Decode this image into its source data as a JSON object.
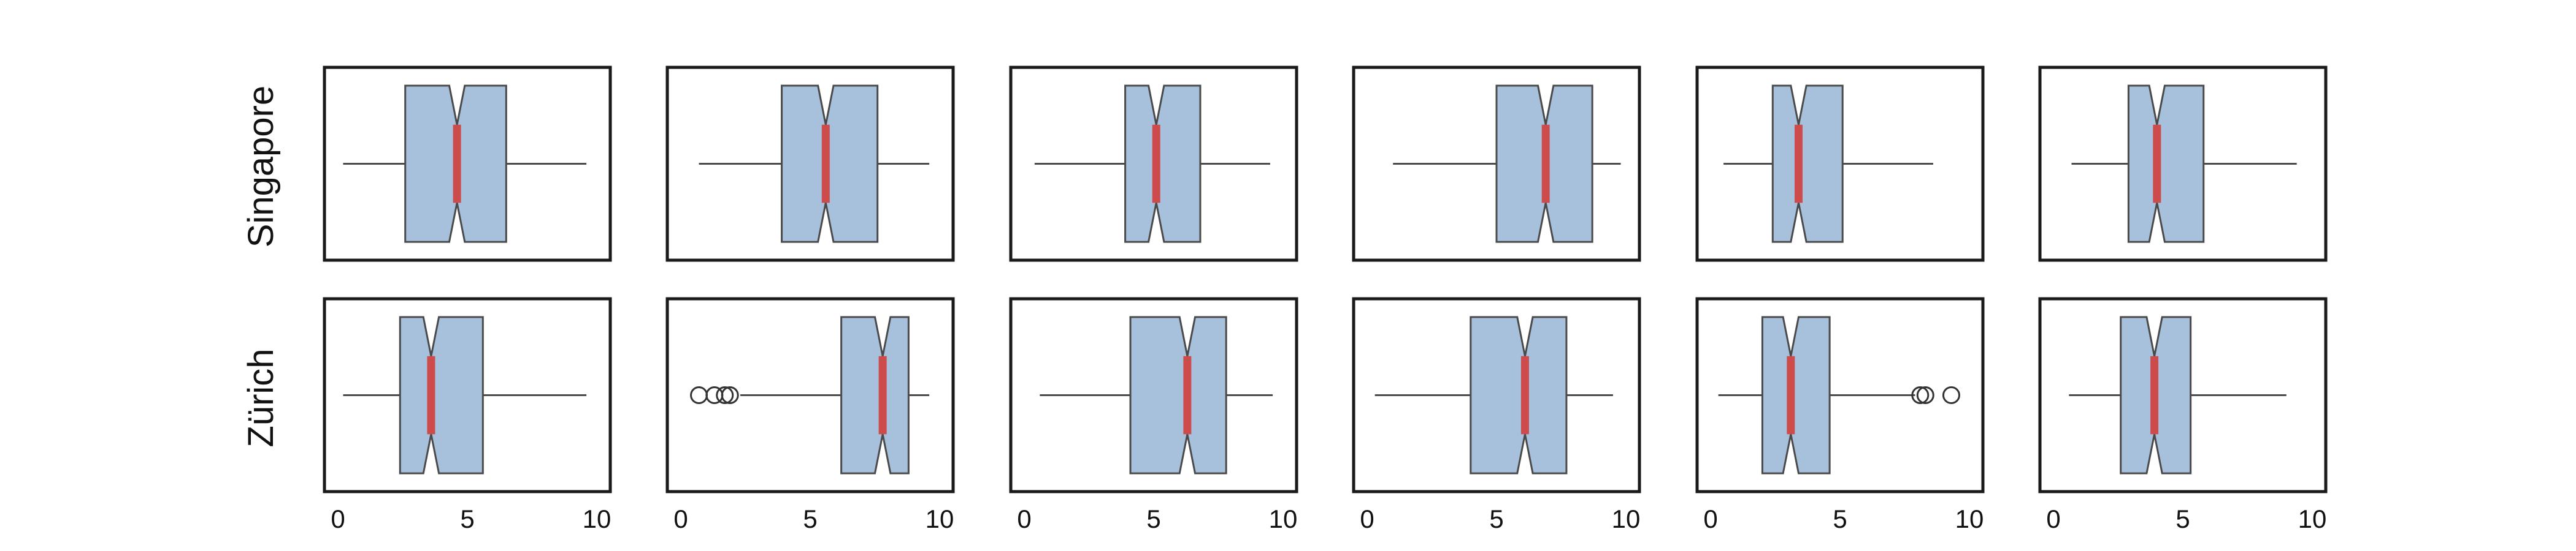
{
  "chart_data": {
    "type": "boxplot",
    "orientation": "horizontal",
    "notched": true,
    "rows": [
      "Singapore",
      "Zürich"
    ],
    "columns": 6,
    "xlim": [
      0,
      10
    ],
    "xticks": [
      0,
      5,
      10
    ],
    "tick_labels": [
      "0",
      "5",
      "10"
    ],
    "grid": false,
    "colors": {
      "box_fill": "#a7c0dc",
      "box_edge": "#4a4a4a",
      "median": "#cd4b4b",
      "frame": "#1a1a1a"
    },
    "panels": [
      [
        {
          "whislo": 0.2,
          "q1": 2.6,
          "notch_lo": 4.3,
          "med": 4.6,
          "notch_hi": 4.9,
          "q3": 6.5,
          "whishi": 9.6,
          "fliers": []
        },
        {
          "whislo": 0.7,
          "q1": 3.9,
          "notch_lo": 5.3,
          "med": 5.6,
          "notch_hi": 5.9,
          "q3": 7.6,
          "whishi": 9.6,
          "fliers": []
        },
        {
          "whislo": 0.4,
          "q1": 3.9,
          "notch_lo": 4.8,
          "med": 5.1,
          "notch_hi": 5.4,
          "q3": 6.8,
          "whishi": 9.5,
          "fliers": []
        },
        {
          "whislo": 1.0,
          "q1": 5.0,
          "notch_lo": 6.6,
          "med": 6.9,
          "notch_hi": 7.2,
          "q3": 8.7,
          "whishi": 9.8,
          "fliers": []
        },
        {
          "whislo": 0.5,
          "q1": 2.4,
          "notch_lo": 3.1,
          "med": 3.4,
          "notch_hi": 3.7,
          "q3": 5.1,
          "whishi": 8.6,
          "fliers": []
        },
        {
          "whislo": 0.7,
          "q1": 2.9,
          "notch_lo": 3.7,
          "med": 4.0,
          "notch_hi": 4.3,
          "q3": 5.8,
          "whishi": 9.4,
          "fliers": []
        }
      ],
      [
        {
          "whislo": 0.2,
          "q1": 2.4,
          "notch_lo": 3.3,
          "med": 3.6,
          "notch_hi": 3.9,
          "q3": 5.6,
          "whishi": 9.6,
          "fliers": []
        },
        {
          "whislo": 2.3,
          "q1": 6.2,
          "notch_lo": 7.5,
          "med": 7.8,
          "notch_hi": 8.1,
          "q3": 8.8,
          "whishi": 9.6,
          "fliers": [
            0.7,
            1.3,
            1.7,
            1.9
          ]
        },
        {
          "whislo": 0.6,
          "q1": 4.1,
          "notch_lo": 6.0,
          "med": 6.3,
          "notch_hi": 6.6,
          "q3": 7.8,
          "whishi": 9.6,
          "fliers": []
        },
        {
          "whislo": 0.3,
          "q1": 4.0,
          "notch_lo": 5.8,
          "med": 6.1,
          "notch_hi": 6.4,
          "q3": 7.7,
          "whishi": 9.5,
          "fliers": []
        },
        {
          "whislo": 0.3,
          "q1": 2.0,
          "notch_lo": 2.8,
          "med": 3.1,
          "notch_hi": 3.4,
          "q3": 4.6,
          "whishi": 7.9,
          "fliers": [
            8.1,
            8.3,
            9.3
          ]
        },
        {
          "whislo": 0.6,
          "q1": 2.6,
          "notch_lo": 3.6,
          "med": 3.9,
          "notch_hi": 4.2,
          "q3": 5.3,
          "whishi": 9.0,
          "fliers": []
        }
      ]
    ]
  }
}
